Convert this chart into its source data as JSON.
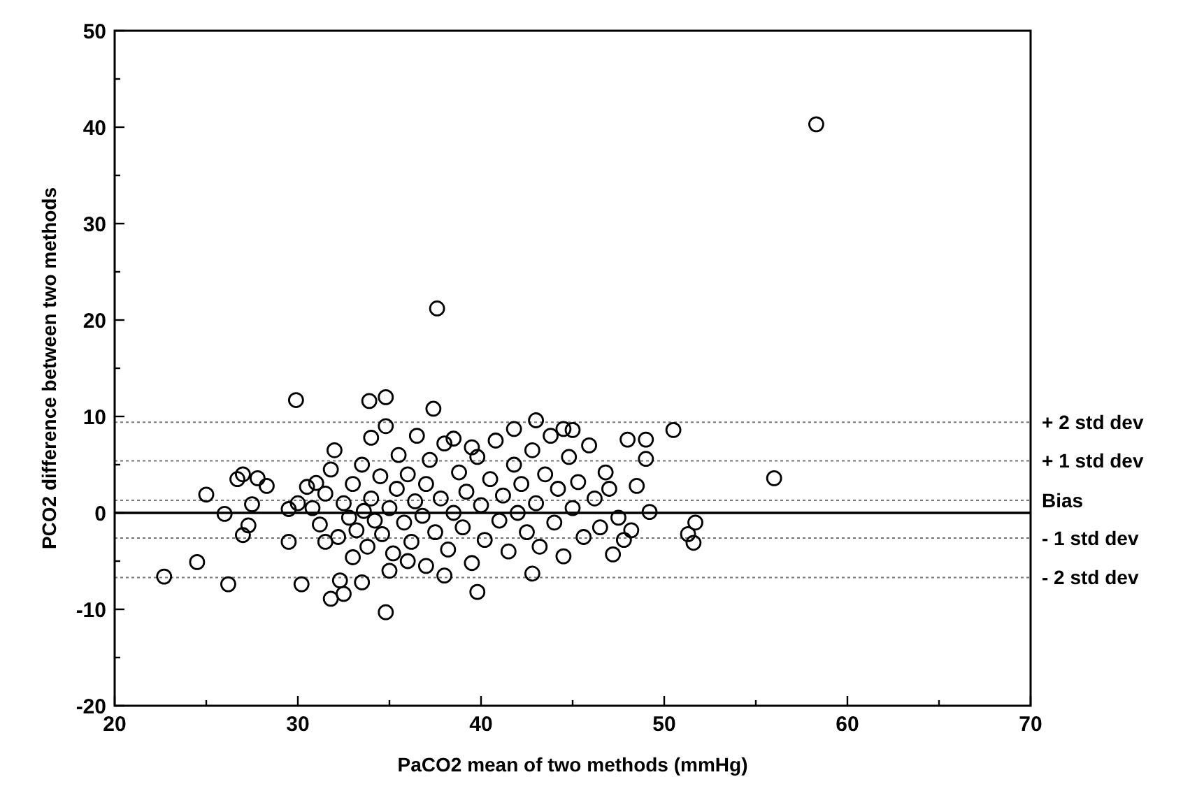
{
  "chart_data": {
    "type": "scatter",
    "xlabel": "PaCO2 mean of two methods (mmHg)",
    "ylabel": "PCO2 difference between two methods",
    "xlim": [
      20,
      70
    ],
    "ylim": [
      -20,
      50
    ],
    "xticks": [
      20,
      {
        "value": 25,
        "label": null
      },
      30,
      {
        "value": 35,
        "label": null
      },
      40,
      {
        "value": 45,
        "label": null
      },
      50,
      {
        "value": 55,
        "label": null
      },
      60,
      {
        "value": 65,
        "label": null
      },
      70
    ],
    "yticks": [
      -20,
      {
        "value": -15,
        "label": null
      },
      -10,
      {
        "value": -5,
        "label": null
      },
      0,
      {
        "value": 5,
        "label": null
      },
      10,
      {
        "value": 15,
        "label": null
      },
      20,
      {
        "value": 25,
        "label": null
      },
      30,
      {
        "value": 35,
        "label": null
      },
      40,
      {
        "value": 45,
        "label": null
      },
      50
    ],
    "grid": false,
    "marker": "circle",
    "ref_lines": [
      {
        "axis": "y",
        "value": 0,
        "label": null,
        "color": "#000000",
        "line_style": "solid"
      },
      {
        "axis": "y",
        "value": 9.4,
        "label": "+ 2 std dev",
        "color": "#777777",
        "line_style": "dotted"
      },
      {
        "axis": "y",
        "value": 5.4,
        "label": "+ 1 std dev",
        "color": "#777777",
        "line_style": "dotted"
      },
      {
        "axis": "y",
        "value": 1.3,
        "label": "Bias",
        "color": "#777777",
        "line_style": "dotted"
      },
      {
        "axis": "y",
        "value": -2.6,
        "label": "- 1 std dev",
        "color": "#777777",
        "line_style": "dotted"
      },
      {
        "axis": "y",
        "value": -6.7,
        "label": "- 2 std dev",
        "color": "#777777",
        "line_style": "dotted"
      }
    ],
    "series": [
      {
        "color": "#000000",
        "x": [
          58.3,
          37.6,
          29.9,
          34.8,
          33.9,
          37.4,
          22.7,
          24.5,
          25,
          26,
          26.2,
          26.7,
          27,
          27,
          27.3,
          27.5,
          27.8,
          28.3,
          29.5,
          29.5,
          30,
          30.2,
          30.5,
          31,
          31.5,
          31.8,
          32.3,
          32.5,
          33,
          33.5,
          34.8,
          35,
          36,
          38,
          39.8,
          42.8,
          47.2,
          48,
          49,
          49,
          49.2,
          50.5,
          51.3,
          51.7,
          51.6,
          56,
          43,
          44.5,
          45,
          41.8,
          38.5,
          39.5,
          30.8,
          31.2,
          31.5,
          31.8,
          32,
          32.2,
          32.5,
          32.8,
          33,
          33.2,
          33.5,
          33.6,
          33.8,
          34,
          34,
          34.2,
          34.5,
          34.6,
          34.8,
          35,
          35.2,
          35.4,
          35.5,
          35.8,
          36,
          36.2,
          36.4,
          36.5,
          36.8,
          37,
          37,
          37.2,
          37.5,
          37.8,
          38,
          38.2,
          38.5,
          38.8,
          39,
          39.2,
          39.5,
          39.8,
          40,
          40.2,
          40.5,
          40.8,
          41,
          41.2,
          41.5,
          41.8,
          42,
          42.2,
          42.5,
          42.8,
          43,
          43.2,
          43.5,
          43.8,
          44,
          44.2,
          44.5,
          44.8,
          45,
          45.3,
          45.6,
          45.9,
          46.2,
          46.5,
          46.8,
          47,
          47.5,
          47.8,
          48.2,
          48.5
        ],
        "values": [
          40.3,
          21.2,
          11.7,
          12,
          11.6,
          10.8,
          -6.6,
          -5.1,
          1.9,
          -0.1,
          -7.4,
          3.5,
          4,
          -2.3,
          -1.3,
          0.9,
          3.6,
          2.8,
          0.4,
          -3,
          1,
          -7.4,
          2.7,
          3.1,
          -3,
          -8.9,
          -7,
          -8.4,
          -4.6,
          -7.2,
          -10.3,
          -6,
          -5,
          -6.5,
          -8.2,
          -6.3,
          -4.3,
          7.6,
          7.6,
          5.6,
          0.1,
          8.6,
          -2.2,
          -1,
          -3.1,
          3.6,
          9.6,
          8.7,
          8.6,
          8.7,
          7.7,
          6.8,
          0.5,
          -1.2,
          2,
          4.5,
          6.5,
          -2.5,
          1,
          -0.5,
          3,
          -1.8,
          5,
          0.2,
          -3.5,
          7.8,
          1.5,
          -0.8,
          3.8,
          -2.2,
          9,
          0.5,
          -4.2,
          2.5,
          6,
          -1,
          4,
          -3,
          1.2,
          8,
          -0.3,
          3,
          -5.5,
          5.5,
          -2,
          1.5,
          7.2,
          -3.8,
          0,
          4.2,
          -1.5,
          2.2,
          -5.2,
          5.8,
          0.8,
          -2.8,
          3.5,
          7.5,
          -0.8,
          1.8,
          -4,
          5,
          0,
          3,
          -2,
          6.5,
          1,
          -3.5,
          4,
          8,
          -1,
          2.5,
          -4.5,
          5.8,
          0.5,
          3.2,
          -2.5,
          7,
          1.5,
          -1.5,
          4.2,
          2.5,
          -0.5,
          -2.8,
          -1.8,
          2.8
        ]
      }
    ]
  }
}
